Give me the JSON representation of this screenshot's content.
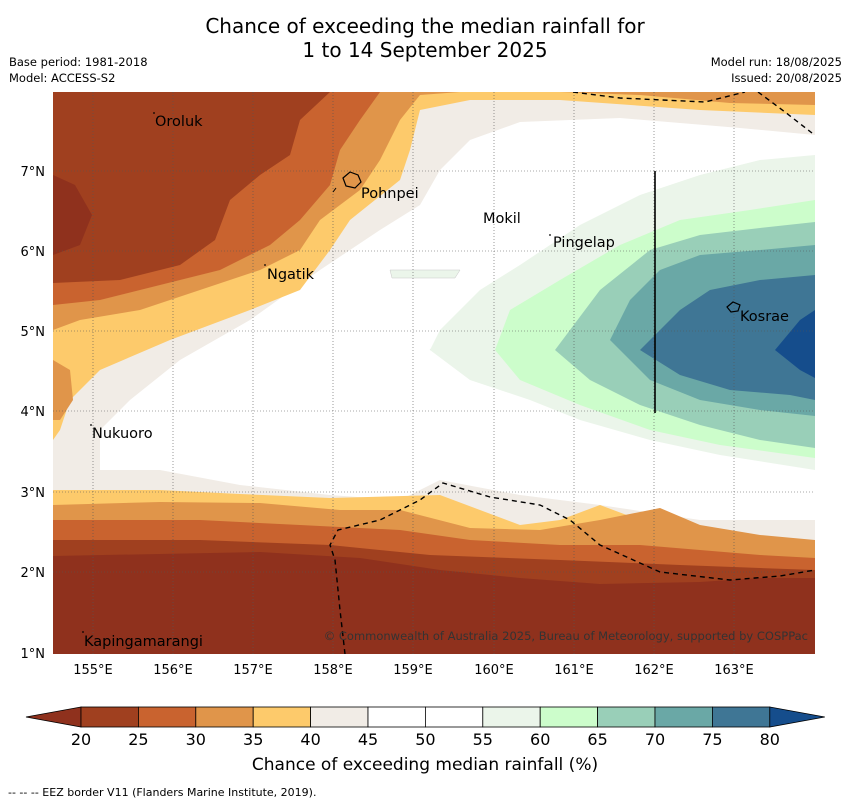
{
  "title": {
    "line1": "Chance of exceeding the median rainfall for",
    "line2": "1 to 14 September 2025"
  },
  "meta": {
    "base_period": "Base period: 1981-2018",
    "model": "Model: ACCESS-S2",
    "model_run": "Model run: 18/08/2025",
    "issued": "Issued: 20/08/2025"
  },
  "axes": {
    "x_ticks": [
      "155°E",
      "156°E",
      "157°E",
      "158°E",
      "159°E",
      "160°E",
      "161°E",
      "162°E",
      "163°E"
    ],
    "y_ticks": [
      "7°N",
      "6°N",
      "5°N",
      "4°N",
      "3°N",
      "2°N",
      "1°N"
    ]
  },
  "places": [
    "Oroluk",
    "Pohnpei",
    "Mokil",
    "Pingelap",
    "Ngatik",
    "Kosrae",
    "Nukuoro",
    "Kapingamarangi"
  ],
  "copyright": "© Commonwealth of Australia 2025, Bureau of Meteorology, supported by COSPPac",
  "colorbar": {
    "ticks": [
      "20",
      "25",
      "30",
      "35",
      "40",
      "45",
      "50",
      "55",
      "60",
      "65",
      "70",
      "75",
      "80"
    ],
    "label": "Chance of exceeding median rainfall (%)",
    "colors": [
      "#a0401f",
      "#c9632f",
      "#e0954a",
      "#fdca6b",
      "#f1ece6",
      "#ffffff",
      "#ffffff",
      "#ebf5ea",
      "#ccfdcb",
      "#99cfb8",
      "#6aa8a6",
      "#3f7695"
    ],
    "under_color": "#8f311d",
    "over_color": "#154d8c"
  },
  "footer": "--  --  -- EEZ border V11 (Flanders Marine Institute, 2019)."
}
